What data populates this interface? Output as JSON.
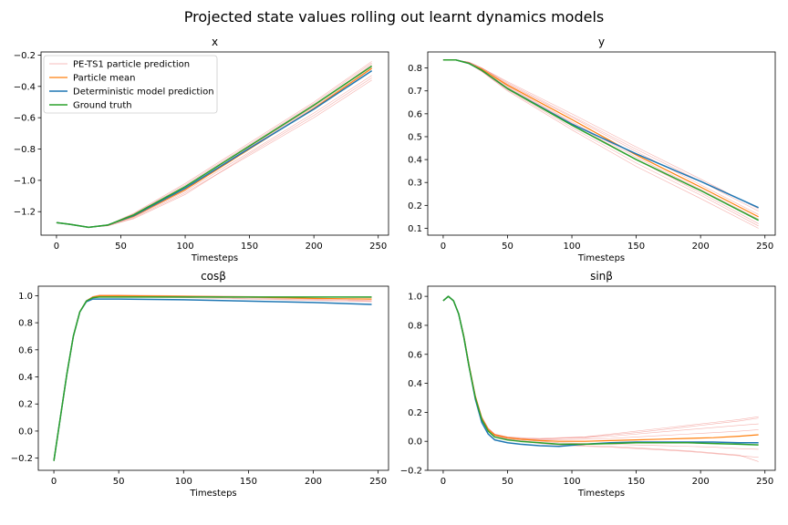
{
  "figure": {
    "suptitle": "Projected state values rolling out learnt dynamics models"
  },
  "legend": {
    "entries": [
      {
        "label": "PE-TS1 particle prediction",
        "color": "#f4a6a6"
      },
      {
        "label": "Particle mean",
        "color": "#ff7f0e"
      },
      {
        "label": "Deterministic model prediction",
        "color": "#1f77b4"
      },
      {
        "label": "Ground truth",
        "color": "#2ca02c"
      }
    ],
    "placement": "upper-left of first subplot"
  },
  "chart_data": [
    {
      "type": "line",
      "title": "x",
      "xlabel": "Timesteps",
      "ylabel": "",
      "xlim": [
        -12,
        258
      ],
      "ylim": [
        -1.35,
        -0.18
      ],
      "xticks": [
        0,
        50,
        100,
        150,
        200,
        250
      ],
      "xtick_labels": [
        "0",
        "50",
        "100",
        "150",
        "200",
        "250"
      ],
      "yticks": [
        -1.2,
        -1.0,
        -0.8,
        -0.6,
        -0.4,
        -0.2
      ],
      "ytick_labels": [
        "−1.2",
        "−1.0",
        "−0.8",
        "−0.6",
        "−0.4",
        "−0.2"
      ],
      "x": [
        0,
        10,
        25,
        40,
        60,
        100,
        150,
        200,
        245
      ],
      "series": [
        {
          "role": "ground-truth",
          "values": [
            -1.27,
            -1.28,
            -1.3,
            -1.285,
            -1.22,
            -1.04,
            -0.78,
            -0.52,
            -0.27
          ]
        },
        {
          "role": "deterministic",
          "values": [
            -1.27,
            -1.28,
            -1.3,
            -1.285,
            -1.225,
            -1.05,
            -0.795,
            -0.545,
            -0.3
          ]
        },
        {
          "role": "particle-mean",
          "values": [
            -1.27,
            -1.28,
            -1.3,
            -1.285,
            -1.23,
            -1.06,
            -0.8,
            -0.54,
            -0.285
          ]
        },
        {
          "role": "particle",
          "values": [
            -1.27,
            -1.28,
            -1.3,
            -1.285,
            -1.21,
            -1.02,
            -0.76,
            -0.5,
            -0.24
          ]
        },
        {
          "role": "particle",
          "values": [
            -1.27,
            -1.28,
            -1.3,
            -1.29,
            -1.24,
            -1.08,
            -0.84,
            -0.6,
            -0.36
          ]
        },
        {
          "role": "particle",
          "values": [
            -1.27,
            -1.28,
            -1.3,
            -1.285,
            -1.235,
            -1.07,
            -0.82,
            -0.57,
            -0.33
          ]
        },
        {
          "role": "particle",
          "values": [
            -1.27,
            -1.28,
            -1.3,
            -1.285,
            -1.215,
            -1.03,
            -0.77,
            -0.51,
            -0.25
          ]
        },
        {
          "role": "particle",
          "values": [
            -1.27,
            -1.28,
            -1.3,
            -1.29,
            -1.245,
            -1.09,
            -0.83,
            -0.585,
            -0.345
          ]
        },
        {
          "role": "particle",
          "values": [
            -1.27,
            -1.28,
            -1.3,
            -1.285,
            -1.225,
            -1.05,
            -0.79,
            -0.53,
            -0.28
          ]
        },
        {
          "role": "particle",
          "values": [
            -1.27,
            -1.28,
            -1.3,
            -1.285,
            -1.22,
            -1.04,
            -0.785,
            -0.525,
            -0.26
          ]
        }
      ]
    },
    {
      "type": "line",
      "title": "y",
      "xlabel": "Timesteps",
      "ylabel": "",
      "xlim": [
        -12,
        258
      ],
      "ylim": [
        0.07,
        0.87
      ],
      "xticks": [
        0,
        50,
        100,
        150,
        200,
        250
      ],
      "xtick_labels": [
        "0",
        "50",
        "100",
        "150",
        "200",
        "250"
      ],
      "yticks": [
        0.1,
        0.2,
        0.3,
        0.4,
        0.5,
        0.6,
        0.7,
        0.8
      ],
      "ytick_labels": [
        "0.1",
        "0.2",
        "0.3",
        "0.4",
        "0.5",
        "0.6",
        "0.7",
        "0.8"
      ],
      "x": [
        0,
        10,
        20,
        30,
        50,
        100,
        150,
        200,
        245
      ],
      "series": [
        {
          "role": "ground-truth",
          "values": [
            0.835,
            0.835,
            0.82,
            0.79,
            0.71,
            0.55,
            0.4,
            0.265,
            0.135
          ]
        },
        {
          "role": "deterministic",
          "values": [
            0.835,
            0.835,
            0.82,
            0.79,
            0.71,
            0.555,
            0.425,
            0.305,
            0.19
          ]
        },
        {
          "role": "particle-mean",
          "values": [
            0.835,
            0.835,
            0.82,
            0.795,
            0.725,
            0.575,
            0.42,
            0.28,
            0.15
          ]
        },
        {
          "role": "particle",
          "values": [
            0.835,
            0.835,
            0.825,
            0.8,
            0.735,
            0.59,
            0.445,
            0.305,
            0.175
          ]
        },
        {
          "role": "particle",
          "values": [
            0.835,
            0.835,
            0.82,
            0.785,
            0.7,
            0.53,
            0.37,
            0.23,
            0.1
          ]
        },
        {
          "role": "particle",
          "values": [
            0.835,
            0.835,
            0.825,
            0.8,
            0.73,
            0.585,
            0.435,
            0.29,
            0.16
          ]
        },
        {
          "role": "particle",
          "values": [
            0.835,
            0.835,
            0.82,
            0.79,
            0.715,
            0.56,
            0.4,
            0.255,
            0.12
          ]
        },
        {
          "role": "particle",
          "values": [
            0.835,
            0.835,
            0.825,
            0.8,
            0.74,
            0.6,
            0.455,
            0.315,
            0.185
          ]
        },
        {
          "role": "particle",
          "values": [
            0.835,
            0.835,
            0.82,
            0.79,
            0.72,
            0.565,
            0.41,
            0.27,
            0.14
          ]
        },
        {
          "role": "particle",
          "values": [
            0.835,
            0.835,
            0.82,
            0.785,
            0.705,
            0.54,
            0.385,
            0.245,
            0.11
          ]
        }
      ]
    },
    {
      "type": "line",
      "title": "cosβ",
      "xlabel": "Timesteps",
      "ylabel": "",
      "xlim": [
        -12,
        258
      ],
      "ylim": [
        -0.29,
        1.07
      ],
      "xticks": [
        0,
        50,
        100,
        150,
        200,
        250
      ],
      "xtick_labels": [
        "0",
        "50",
        "100",
        "150",
        "200",
        "250"
      ],
      "yticks": [
        -0.2,
        0.0,
        0.2,
        0.4,
        0.6,
        0.8,
        1.0
      ],
      "ytick_labels": [
        "−0.2",
        "0.0",
        "0.2",
        "0.4",
        "0.6",
        "0.8",
        "1.0"
      ],
      "x": [
        0,
        5,
        10,
        15,
        20,
        25,
        30,
        35,
        50,
        100,
        150,
        200,
        245
      ],
      "series": [
        {
          "role": "ground-truth",
          "values": [
            -0.22,
            0.1,
            0.42,
            0.7,
            0.88,
            0.96,
            0.985,
            0.99,
            0.99,
            0.99,
            0.99,
            0.99,
            0.99
          ]
        },
        {
          "role": "deterministic",
          "values": [
            -0.22,
            0.1,
            0.42,
            0.7,
            0.88,
            0.955,
            0.975,
            0.975,
            0.975,
            0.97,
            0.96,
            0.95,
            0.935
          ]
        },
        {
          "role": "particle-mean",
          "values": [
            -0.22,
            0.1,
            0.42,
            0.7,
            0.88,
            0.96,
            0.99,
            1.0,
            1.0,
            0.995,
            0.99,
            0.98,
            0.975
          ]
        },
        {
          "role": "particle",
          "values": [
            -0.22,
            0.1,
            0.42,
            0.7,
            0.88,
            0.965,
            0.995,
            1.005,
            1.005,
            1.0,
            0.995,
            0.99,
            0.985
          ]
        },
        {
          "role": "particle",
          "values": [
            -0.22,
            0.1,
            0.42,
            0.7,
            0.88,
            0.96,
            0.985,
            0.99,
            0.99,
            0.985,
            0.975,
            0.965,
            0.955
          ]
        },
        {
          "role": "particle",
          "values": [
            -0.22,
            0.1,
            0.42,
            0.7,
            0.88,
            0.962,
            0.99,
            0.998,
            0.998,
            0.992,
            0.985,
            0.975,
            0.965
          ]
        },
        {
          "role": "particle",
          "values": [
            -0.22,
            0.1,
            0.42,
            0.7,
            0.88,
            0.96,
            0.988,
            0.995,
            0.995,
            0.99,
            0.98,
            0.97,
            0.96
          ]
        }
      ]
    },
    {
      "type": "line",
      "title": "sinβ",
      "xlabel": "Timesteps",
      "ylabel": "",
      "xlim": [
        -12,
        258
      ],
      "ylim": [
        -0.2,
        1.07
      ],
      "xticks": [
        0,
        50,
        100,
        150,
        200,
        250
      ],
      "xtick_labels": [
        "0",
        "50",
        "100",
        "150",
        "200",
        "250"
      ],
      "yticks": [
        -0.2,
        0.0,
        0.2,
        0.4,
        0.6,
        0.8,
        1.0
      ],
      "ytick_labels": [
        "−0.2",
        "0.0",
        "0.2",
        "0.4",
        "0.6",
        "0.8",
        "1.0"
      ],
      "x": [
        0,
        4,
        8,
        12,
        16,
        20,
        25,
        30,
        35,
        40,
        50,
        60,
        75,
        90,
        110,
        130,
        150,
        170,
        190,
        210,
        230,
        245
      ],
      "series": [
        {
          "role": "ground-truth",
          "values": [
            0.97,
            1.0,
            0.97,
            0.88,
            0.72,
            0.52,
            0.3,
            0.15,
            0.07,
            0.03,
            0.01,
            0.0,
            -0.01,
            -0.02,
            -0.02,
            -0.015,
            -0.01,
            -0.01,
            -0.01,
            -0.015,
            -0.02,
            -0.025
          ]
        },
        {
          "role": "deterministic",
          "values": [
            0.97,
            1.0,
            0.97,
            0.88,
            0.72,
            0.52,
            0.29,
            0.13,
            0.05,
            0.01,
            -0.01,
            -0.02,
            -0.03,
            -0.035,
            -0.02,
            -0.01,
            -0.005,
            -0.005,
            -0.005,
            -0.005,
            -0.01,
            -0.01
          ]
        },
        {
          "role": "particle-mean",
          "values": [
            0.97,
            1.0,
            0.97,
            0.88,
            0.73,
            0.53,
            0.31,
            0.16,
            0.08,
            0.045,
            0.025,
            0.015,
            0.005,
            0.0,
            0.0,
            0.005,
            0.01,
            0.015,
            0.02,
            0.025,
            0.035,
            0.045
          ]
        },
        {
          "role": "particle",
          "values": [
            0.97,
            1.0,
            0.97,
            0.88,
            0.73,
            0.54,
            0.32,
            0.17,
            0.09,
            0.05,
            0.03,
            0.025,
            0.02,
            0.025,
            0.03,
            0.05,
            0.07,
            0.09,
            0.11,
            0.13,
            0.15,
            0.17
          ]
        },
        {
          "role": "particle",
          "values": [
            0.97,
            1.0,
            0.97,
            0.88,
            0.73,
            0.53,
            0.31,
            0.16,
            0.08,
            0.04,
            0.015,
            0.0,
            -0.015,
            -0.025,
            -0.035,
            -0.04,
            -0.05,
            -0.06,
            -0.07,
            -0.085,
            -0.1,
            -0.11
          ]
        },
        {
          "role": "particle",
          "values": [
            0.97,
            1.0,
            0.97,
            0.88,
            0.73,
            0.535,
            0.315,
            0.165,
            0.085,
            0.045,
            0.025,
            0.02,
            0.015,
            0.02,
            0.025,
            0.035,
            0.05,
            0.065,
            0.08,
            0.095,
            0.11,
            0.12
          ]
        },
        {
          "role": "particle",
          "values": [
            0.97,
            1.0,
            0.97,
            0.88,
            0.73,
            0.53,
            0.31,
            0.16,
            0.08,
            0.04,
            0.02,
            0.01,
            0.0,
            -0.01,
            -0.015,
            -0.02,
            -0.025,
            -0.03,
            -0.035,
            -0.04,
            -0.05,
            -0.055
          ]
        },
        {
          "role": "particle",
          "values": [
            0.97,
            1.0,
            0.97,
            0.88,
            0.73,
            0.53,
            0.31,
            0.16,
            0.085,
            0.045,
            0.025,
            0.015,
            0.01,
            0.01,
            0.015,
            0.02,
            0.03,
            0.04,
            0.05,
            0.06,
            0.07,
            0.08
          ]
        },
        {
          "role": "particle",
          "values": [
            0.97,
            1.0,
            0.97,
            0.88,
            0.73,
            0.53,
            0.31,
            0.16,
            0.08,
            0.04,
            0.02,
            0.005,
            -0.01,
            -0.02,
            -0.03,
            -0.035,
            -0.045,
            -0.055,
            -0.065,
            -0.08,
            -0.095,
            -0.14
          ]
        },
        {
          "role": "particle",
          "values": [
            0.97,
            1.0,
            0.97,
            0.88,
            0.73,
            0.535,
            0.315,
            0.165,
            0.09,
            0.05,
            0.03,
            0.02,
            0.015,
            0.02,
            0.03,
            0.045,
            0.06,
            0.08,
            0.1,
            0.12,
            0.14,
            0.16
          ]
        }
      ]
    }
  ]
}
